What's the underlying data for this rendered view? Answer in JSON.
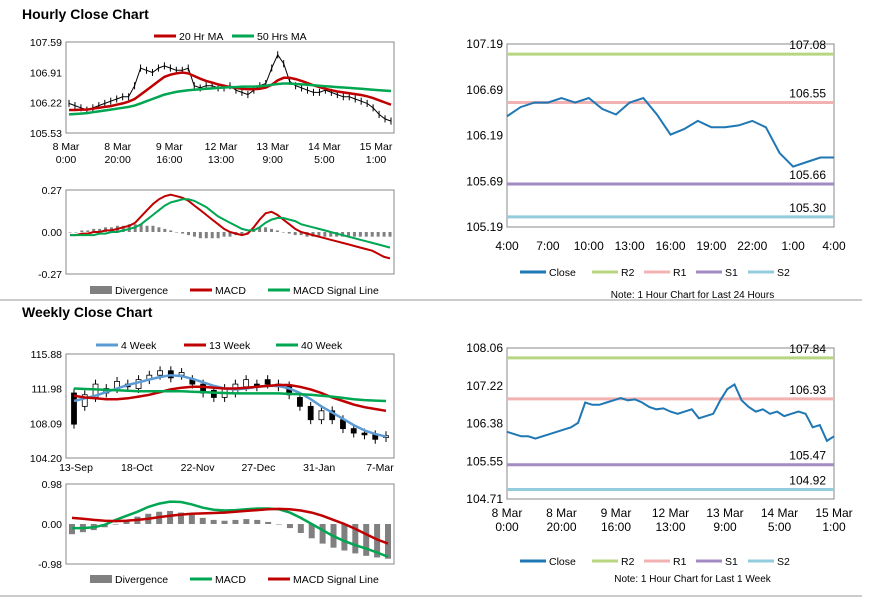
{
  "titles": {
    "hourly": "Hourly Close Chart",
    "weekly": "Weekly Close Chart"
  },
  "colors": {
    "close": "#1f77b4",
    "ma_short": "#c00000",
    "ma_long": "#00a651",
    "ma_4": "#5b9bd5",
    "divergence": "#808080",
    "r2": "#b7d67f",
    "r1": "#f2b2b2",
    "s1": "#a48ac2",
    "s2": "#93cddd"
  },
  "chart_data": [
    {
      "id": "hourly_price",
      "type": "line",
      "legend": [
        "20 Hr MA",
        "50 Hrs MA"
      ],
      "yticks": [
        "107.59",
        "106.91",
        "106.22",
        "105.53"
      ],
      "ylim": [
        105.53,
        107.59
      ],
      "xticks": [
        [
          "8 Mar",
          "0:00"
        ],
        [
          "8 Mar",
          "20:00"
        ],
        [
          "9 Mar",
          "16:00"
        ],
        [
          "12 Mar",
          "13:00"
        ],
        [
          "13 Mar",
          "9:00"
        ],
        [
          "14 Mar",
          "5:00"
        ],
        [
          "15 Mar",
          "1:00"
        ]
      ],
      "close": [
        106.2,
        106.15,
        106.1,
        106.05,
        106.1,
        106.15,
        106.2,
        106.25,
        106.3,
        106.35,
        106.35,
        106.6,
        107,
        106.95,
        106.9,
        107,
        107.05,
        107.0,
        106.95,
        106.95,
        107.0,
        106.6,
        106.55,
        106.6,
        106.6,
        106.55,
        106.55,
        106.6,
        106.5,
        106.45,
        106.4,
        106.5,
        106.6,
        106.65,
        107.0,
        107.3,
        107.1,
        106.7,
        106.6,
        106.55,
        106.5,
        106.45,
        106.45,
        106.5,
        106.45,
        106.4,
        106.35,
        106.35,
        106.3,
        106.25,
        106.2,
        106.1,
        105.95,
        105.85,
        105.8
      ],
      "series": [
        {
          "name": "20 Hr MA",
          "values": [
            106.05,
            106.05,
            106.06,
            106.06,
            106.08,
            106.1,
            106.12,
            106.14,
            106.17,
            106.2,
            106.24,
            106.3,
            106.4,
            106.5,
            106.6,
            106.7,
            106.8,
            106.85,
            106.88,
            106.9,
            106.88,
            106.82,
            106.76,
            106.71,
            106.67,
            106.63,
            106.6,
            106.57,
            106.55,
            106.53,
            106.52,
            106.52,
            106.53,
            106.56,
            106.62,
            106.72,
            106.78,
            106.78,
            106.75,
            106.71,
            106.66,
            106.61,
            106.57,
            106.53,
            106.5,
            106.47,
            106.45,
            106.43,
            106.41,
            106.39,
            106.36,
            106.32,
            106.27,
            106.22,
            106.17
          ]
        },
        {
          "name": "50 Hrs MA",
          "values": [
            105.95,
            105.96,
            105.97,
            105.98,
            106.0,
            106.02,
            106.04,
            106.06,
            106.08,
            106.1,
            106.12,
            106.15,
            106.2,
            106.25,
            106.3,
            106.35,
            106.4,
            106.43,
            106.46,
            106.48,
            106.5,
            106.51,
            106.52,
            106.53,
            106.54,
            106.55,
            106.56,
            106.57,
            106.57,
            106.58,
            106.58,
            106.58,
            106.59,
            106.6,
            106.62,
            106.64,
            106.65,
            106.65,
            106.64,
            106.63,
            106.62,
            106.61,
            106.6,
            106.59,
            106.58,
            106.57,
            106.56,
            106.55,
            106.54,
            106.53,
            106.52,
            106.51,
            106.5,
            106.49,
            106.48
          ]
        }
      ]
    },
    {
      "id": "hourly_macd",
      "type": "bar",
      "legend": [
        "Divergence",
        "MACD",
        "MACD Signal Line"
      ],
      "yticks": [
        "0.27",
        "0.00",
        "-0.27"
      ],
      "ylim": [
        -0.27,
        0.27
      ],
      "divergence": [
        0,
        0,
        0.01,
        0.01,
        0.02,
        0.02,
        0.03,
        0.03,
        0.04,
        0.04,
        0.05,
        0.05,
        0.05,
        0.04,
        0.04,
        0.03,
        0.02,
        0.01,
        0,
        -0.01,
        -0.02,
        -0.03,
        -0.04,
        -0.04,
        -0.04,
        -0.04,
        -0.03,
        -0.03,
        -0.02,
        -0.02,
        0,
        0.02,
        0.03,
        0.03,
        0.02,
        0.01,
        0,
        -0.01,
        -0.02,
        -0.02,
        -0.03,
        -0.03,
        -0.03,
        -0.03,
        -0.03,
        -0.03,
        -0.03,
        -0.03,
        -0.03,
        -0.03,
        -0.03,
        -0.03,
        -0.03,
        -0.03,
        -0.03
      ],
      "series": [
        {
          "name": "MACD",
          "values": [
            -0.02,
            -0.02,
            -0.01,
            -0.01,
            0,
            0,
            0.01,
            0.01,
            0.02,
            0.03,
            0.04,
            0.06,
            0.1,
            0.14,
            0.18,
            0.21,
            0.23,
            0.24,
            0.23,
            0.22,
            0.2,
            0.17,
            0.14,
            0.11,
            0.08,
            0.05,
            0.02,
            0,
            -0.01,
            -0.02,
            -0.01,
            0.03,
            0.08,
            0.12,
            0.13,
            0.11,
            0.08,
            0.05,
            0.02,
            0,
            -0.01,
            -0.02,
            -0.03,
            -0.04,
            -0.05,
            -0.06,
            -0.07,
            -0.08,
            -0.09,
            -0.1,
            -0.11,
            -0.12,
            -0.14,
            -0.16,
            -0.17
          ]
        },
        {
          "name": "MACD Signal Line",
          "values": [
            -0.02,
            -0.02,
            -0.02,
            -0.02,
            -0.02,
            -0.01,
            -0.01,
            0,
            0,
            0.01,
            0.02,
            0.03,
            0.05,
            0.08,
            0.11,
            0.14,
            0.17,
            0.19,
            0.2,
            0.21,
            0.21,
            0.2,
            0.18,
            0.16,
            0.13,
            0.1,
            0.08,
            0.06,
            0.04,
            0.02,
            0.01,
            0.01,
            0.03,
            0.06,
            0.08,
            0.09,
            0.09,
            0.08,
            0.07,
            0.05,
            0.04,
            0.03,
            0.02,
            0.01,
            0,
            -0.01,
            -0.02,
            -0.03,
            -0.04,
            -0.05,
            -0.06,
            -0.07,
            -0.08,
            -0.09,
            -0.1
          ]
        }
      ]
    },
    {
      "id": "hourly_24h",
      "type": "line",
      "yticks": [
        "107.19",
        "106.69",
        "106.19",
        "105.69",
        "105.19"
      ],
      "ylim": [
        105.19,
        107.19
      ],
      "xticks": [
        "4:00",
        "7:00",
        "10:00",
        "13:00",
        "16:00",
        "19:00",
        "22:00",
        "1:00",
        "4:00"
      ],
      "close": [
        106.4,
        106.5,
        106.55,
        106.55,
        106.6,
        106.55,
        106.6,
        106.48,
        106.42,
        106.55,
        106.6,
        106.42,
        106.2,
        106.26,
        106.35,
        106.28,
        106.28,
        106.3,
        106.35,
        106.28,
        106.0,
        105.85,
        105.9,
        105.95,
        105.95
      ],
      "levels": [
        {
          "name": "R2",
          "value": 107.08,
          "label": "107.08"
        },
        {
          "name": "R1",
          "value": 106.55,
          "label": "106.55"
        },
        {
          "name": "S1",
          "value": 105.66,
          "label": "105.66"
        },
        {
          "name": "S2",
          "value": 105.3,
          "label": "105.30"
        }
      ],
      "legend": [
        "Close",
        "R2",
        "R1",
        "S1",
        "S2"
      ],
      "note": "Note: 1 Hour Chart for Last 24 Hours"
    },
    {
      "id": "weekly_price",
      "type": "line",
      "legend": [
        "4 Week",
        "13 Week",
        "40 Week"
      ],
      "yticks": [
        "115.88",
        "111.98",
        "108.09",
        "104.20"
      ],
      "ylim": [
        104.2,
        115.88
      ],
      "xticks": [
        "13-Sep",
        "18-Oct",
        "22-Nov",
        "27-Dec",
        "31-Jan",
        "7-Mar"
      ],
      "candles": [
        [
          111.5,
          108
        ],
        [
          110,
          111.3
        ],
        [
          111,
          112.5
        ],
        [
          111.5,
          112
        ],
        [
          112,
          112.8
        ],
        [
          112.5,
          112.2
        ],
        [
          112,
          113
        ],
        [
          113,
          113.5
        ],
        [
          113.5,
          114
        ],
        [
          114,
          113.2
        ],
        [
          113.5,
          113.8
        ],
        [
          113,
          112.5
        ],
        [
          112.5,
          111.5
        ],
        [
          111.8,
          111
        ],
        [
          111,
          112
        ],
        [
          111.5,
          112.5
        ],
        [
          112.2,
          113
        ],
        [
          112.5,
          112.2
        ],
        [
          113,
          112.5
        ],
        [
          112.5,
          112.2
        ],
        [
          112.3,
          111.3
        ],
        [
          111,
          110
        ],
        [
          110,
          108.5
        ],
        [
          108.5,
          109.5
        ],
        [
          109.5,
          108.5
        ],
        [
          108.5,
          107.5
        ],
        [
          107.5,
          107
        ],
        [
          107,
          106.8
        ],
        [
          106.8,
          106.3
        ],
        [
          106.5,
          106.7
        ]
      ],
      "series": [
        {
          "name": "4 Week",
          "values": [
            110.6,
            110.9,
            111.2,
            111.6,
            112.0,
            112.4,
            112.7,
            113.0,
            113.3,
            113.5,
            113.4,
            113.1,
            112.7,
            112.3,
            112.0,
            111.9,
            112.0,
            112.2,
            112.3,
            112.3,
            112.0,
            111.5,
            110.8,
            110.0,
            109.3,
            108.6,
            107.9,
            107.3,
            106.9,
            106.6
          ]
        },
        {
          "name": "13 Week",
          "values": [
            111.2,
            111.0,
            110.9,
            110.8,
            110.8,
            110.9,
            111.1,
            111.3,
            111.6,
            111.9,
            112.1,
            112.2,
            112.2,
            112.1,
            112.0,
            112.0,
            112.1,
            112.2,
            112.3,
            112.4,
            112.4,
            112.2,
            111.9,
            111.5,
            111.0,
            110.6,
            110.2,
            109.9,
            109.7,
            109.5
          ]
        },
        {
          "name": "40 Week",
          "values": [
            112.0,
            111.95,
            111.9,
            111.85,
            111.8,
            111.75,
            111.7,
            111.7,
            111.7,
            111.7,
            111.7,
            111.65,
            111.6,
            111.55,
            111.5,
            111.45,
            111.45,
            111.45,
            111.45,
            111.45,
            111.4,
            111.35,
            111.3,
            111.2,
            111.1,
            110.95,
            110.8,
            110.7,
            110.65,
            110.6
          ]
        }
      ]
    },
    {
      "id": "weekly_macd",
      "type": "bar",
      "legend": [
        "Divergence",
        "MACD",
        "MACD Signal Line"
      ],
      "yticks": [
        "0.98",
        "0.00",
        "-0.98"
      ],
      "ylim": [
        -0.98,
        0.98
      ],
      "divergence": [
        -0.25,
        -0.2,
        -0.15,
        -0.08,
        0,
        0.1,
        0.18,
        0.25,
        0.3,
        0.32,
        0.28,
        0.22,
        0.15,
        0.1,
        0.08,
        0.1,
        0.12,
        0.1,
        0.05,
        0,
        -0.1,
        -0.22,
        -0.35,
        -0.48,
        -0.58,
        -0.65,
        -0.72,
        -0.78,
        -0.82,
        -0.85
      ],
      "series": [
        {
          "name": "MACD",
          "values": [
            -0.1,
            -0.1,
            -0.08,
            -0.02,
            0.1,
            0.2,
            0.3,
            0.42,
            0.5,
            0.55,
            0.54,
            0.48,
            0.4,
            0.35,
            0.33,
            0.34,
            0.36,
            0.38,
            0.38,
            0.36,
            0.28,
            0.15,
            0.0,
            -0.15,
            -0.3,
            -0.42,
            -0.52,
            -0.6,
            -0.7,
            -0.8
          ]
        },
        {
          "name": "MACD Signal Line",
          "values": [
            0.15,
            0.13,
            0.1,
            0.08,
            0.07,
            0.08,
            0.1,
            0.13,
            0.17,
            0.2,
            0.23,
            0.25,
            0.26,
            0.27,
            0.28,
            0.3,
            0.32,
            0.34,
            0.36,
            0.37,
            0.36,
            0.33,
            0.28,
            0.2,
            0.1,
            0.0,
            -0.12,
            -0.25,
            -0.38,
            -0.48
          ]
        }
      ]
    },
    {
      "id": "weekly_1w",
      "type": "line",
      "yticks": [
        "108.06",
        "107.22",
        "106.38",
        "105.55",
        "104.71"
      ],
      "ylim": [
        104.71,
        108.06
      ],
      "xticks": [
        [
          "8 Mar",
          "0:00"
        ],
        [
          "8 Mar",
          "20:00"
        ],
        [
          "9 Mar",
          "16:00"
        ],
        [
          "12 Mar",
          "13:00"
        ],
        [
          "13 Mar",
          "9:00"
        ],
        [
          "14 Mar",
          "5:00"
        ],
        [
          "15 Mar",
          "1:00"
        ]
      ],
      "close": [
        106.2,
        106.15,
        106.1,
        106.1,
        106.05,
        106.1,
        106.15,
        106.2,
        106.25,
        106.3,
        106.4,
        106.85,
        106.8,
        106.8,
        106.85,
        106.9,
        106.95,
        106.9,
        106.92,
        106.85,
        106.75,
        106.7,
        106.72,
        106.65,
        106.6,
        106.65,
        106.7,
        106.5,
        106.55,
        106.6,
        106.9,
        107.15,
        107.25,
        106.9,
        106.75,
        106.65,
        106.7,
        106.6,
        106.65,
        106.55,
        106.6,
        106.65,
        106.6,
        106.3,
        106.35,
        106.0,
        106.1
      ],
      "levels": [
        {
          "name": "R2",
          "value": 107.84,
          "label": "107.84"
        },
        {
          "name": "R1",
          "value": 106.93,
          "label": "106.93"
        },
        {
          "name": "S1",
          "value": 105.47,
          "label": "105.47"
        },
        {
          "name": "S2",
          "value": 104.92,
          "label": "104.92"
        }
      ],
      "legend": [
        "Close",
        "R2",
        "R1",
        "S1",
        "S2"
      ],
      "note": "Note: 1 Hour Chart for Last 1 Week"
    }
  ]
}
